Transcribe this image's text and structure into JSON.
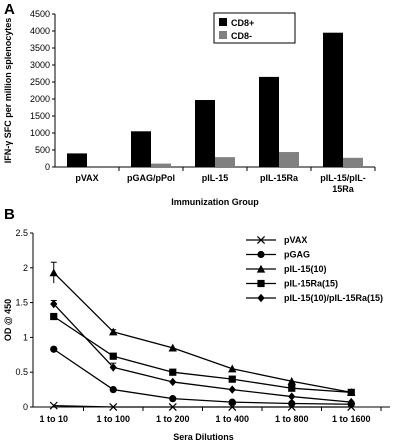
{
  "panel_a_label": "A",
  "panel_b_label": "B",
  "chart_data": [
    {
      "type": "bar",
      "categories": [
        "pVAX",
        "pGAG/pPol",
        "pIL-15",
        "pIL-15Ra",
        "pIL-15/pIL-15Ra"
      ],
      "category_lines": [
        [
          "pVAX"
        ],
        [
          "pGAG/pPol"
        ],
        [
          "pIL-15"
        ],
        [
          "pIL-15Ra"
        ],
        [
          "pIL-15/pIL-",
          "15Ra"
        ]
      ],
      "series": [
        {
          "name": "CD8+",
          "color": "#000000",
          "values": [
            400,
            1050,
            1970,
            2650,
            3950
          ]
        },
        {
          "name": "CD8-",
          "color": "#808080",
          "values": [
            0,
            100,
            290,
            440,
            270
          ]
        }
      ],
      "xlabel": "Immunization Group",
      "ylabel": "IFN-γ SFC per million splenocytes",
      "ylim": [
        0,
        4500
      ],
      "yticks": [
        0,
        500,
        1000,
        1500,
        2000,
        2500,
        3000,
        3500,
        4000,
        4500
      ],
      "legend_position": "top-right",
      "grid": false
    },
    {
      "type": "line",
      "categories": [
        "1 to 10",
        "1 to 100",
        "1 to 200",
        "1 to 400",
        "1 to 800",
        "1 to 1600"
      ],
      "series": [
        {
          "name": "pVAX",
          "marker": "x",
          "values": [
            0.02,
            0.0,
            0.0,
            0.0,
            0.0,
            0.0
          ]
        },
        {
          "name": "pGAG",
          "marker": "circle",
          "values": [
            0.83,
            0.25,
            0.12,
            0.07,
            0.05,
            0.04
          ]
        },
        {
          "name": "pIL-15(10)",
          "marker": "triangle",
          "values": [
            1.93,
            1.08,
            0.85,
            0.55,
            0.37,
            0.21
          ]
        },
        {
          "name": "pIL-15Ra(15)",
          "marker": "square",
          "values": [
            1.3,
            0.73,
            0.5,
            0.4,
            0.27,
            0.21
          ]
        },
        {
          "name": "pIL-15(10)/pIL-15Ra(15)",
          "marker": "diamond",
          "values": [
            1.48,
            0.57,
            0.36,
            0.25,
            0.15,
            0.07
          ]
        }
      ],
      "error_bars": {
        "pIL-15(10)": [
          0.15,
          0.03,
          0.0,
          0.0,
          0.0,
          0.0
        ],
        "pIL-15(10)/pIL-15Ra(15)": [
          0.05,
          0.06,
          0.0,
          0.0,
          0.0,
          0.0
        ],
        "pIL-15Ra(15)": [
          0.0,
          0.0,
          0.0,
          0.0,
          0.0,
          0.0
        ],
        "pGAG": [
          0.0,
          0.0,
          0.0,
          0.0,
          0.0,
          0.0
        ],
        "pVAX": [
          0.0,
          0.0,
          0.0,
          0.0,
          0.0,
          0.0
        ]
      },
      "xlabel": "Sera Dilutions",
      "ylabel": "OD @ 450",
      "ylim": [
        0,
        2.5
      ],
      "yticks": [
        0,
        0.5,
        1,
        1.5,
        2,
        2.5
      ],
      "legend_position": "top-right",
      "grid": false
    }
  ]
}
